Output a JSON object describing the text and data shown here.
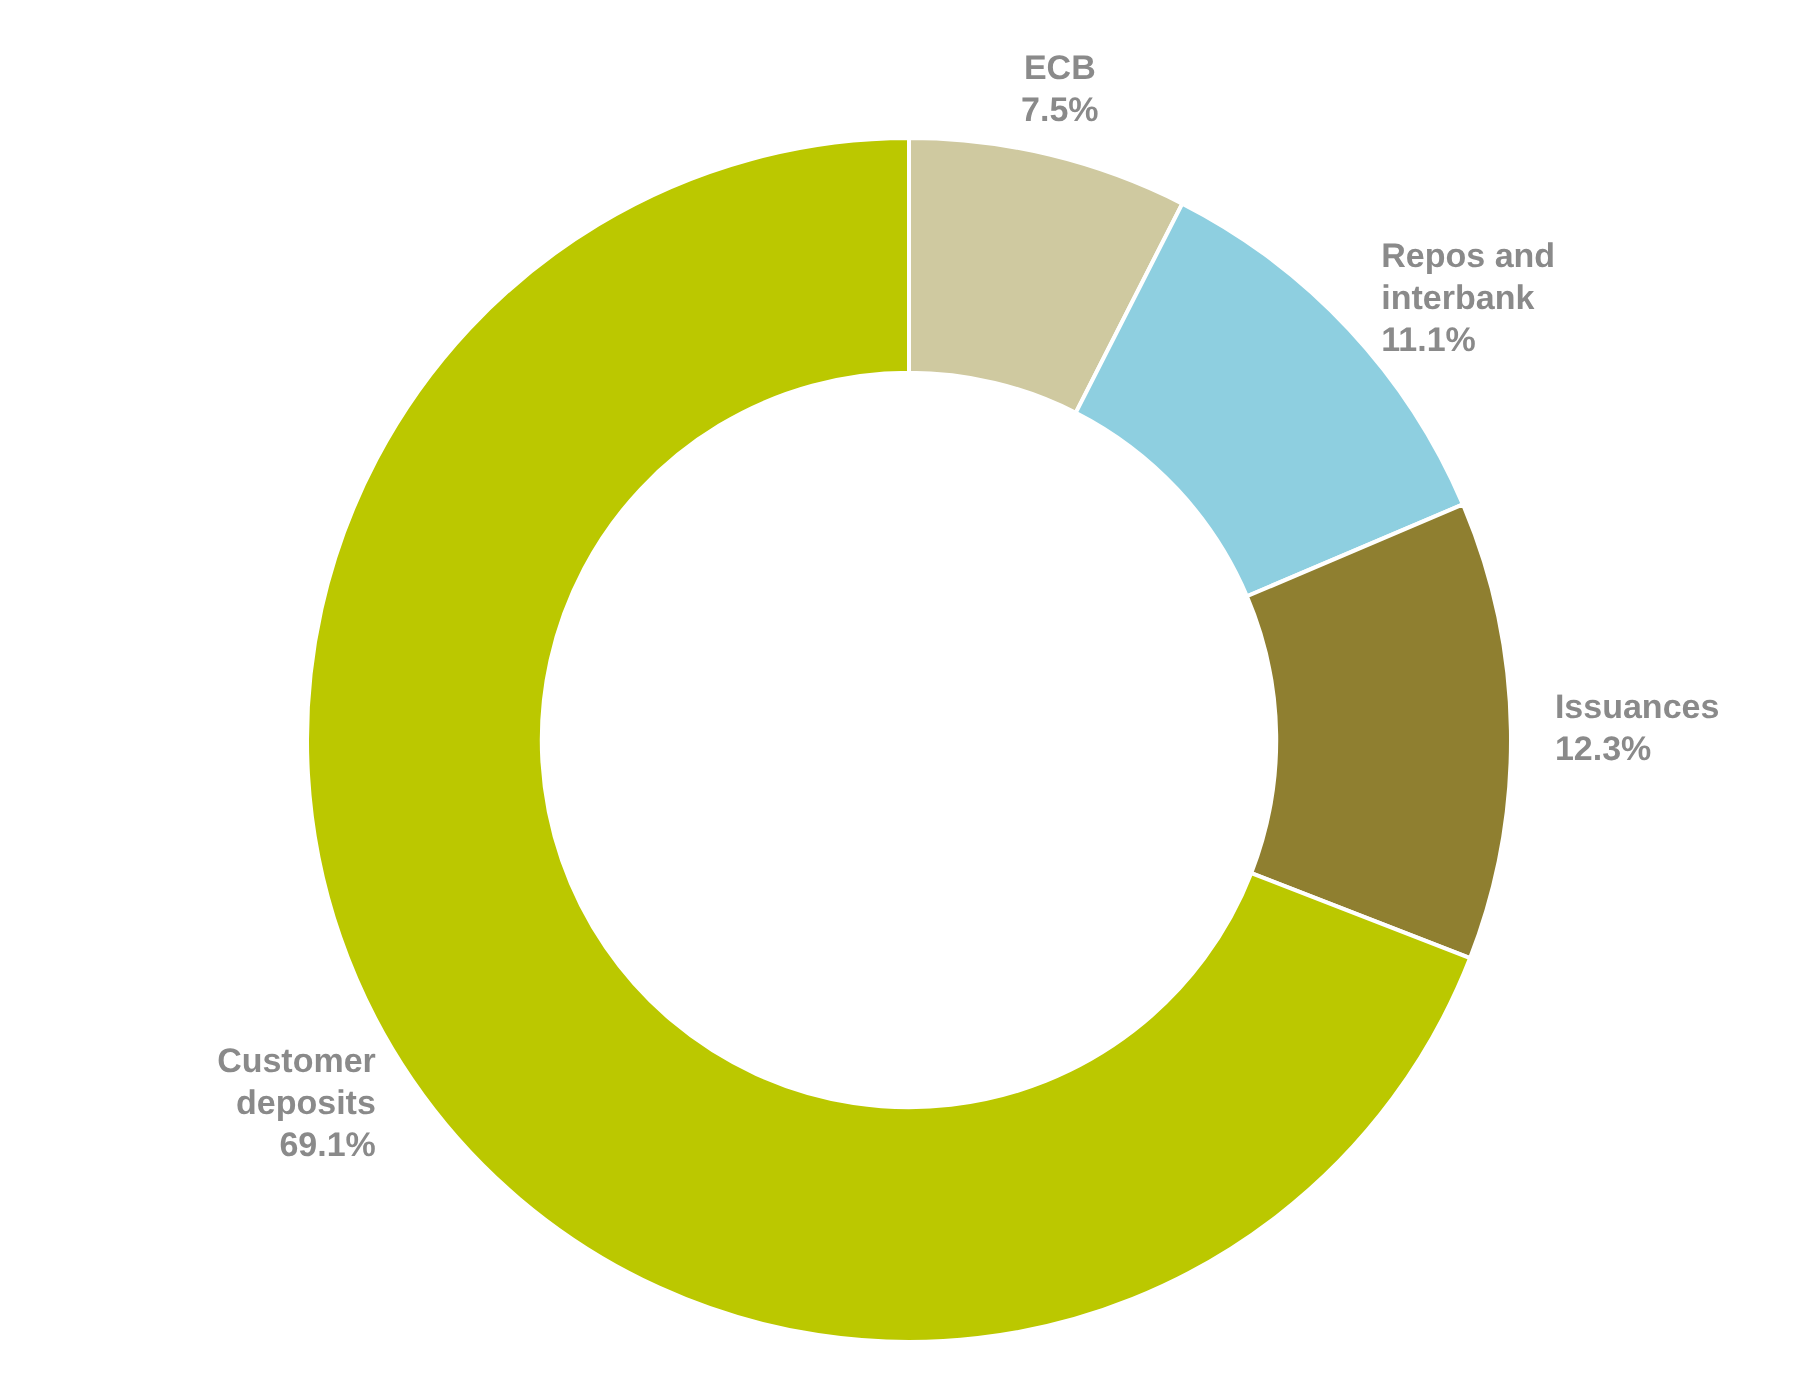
{
  "chart_data": {
    "type": "donut",
    "categories": [
      "ECB",
      "Repos and interbank",
      "Issuances",
      "Customer deposits"
    ],
    "values": [
      7.5,
      11.1,
      12.3,
      69.1
    ],
    "colors": [
      "#cfc9a0",
      "#8ecfe0",
      "#8f7f30",
      "#bbc800"
    ],
    "value_labels": [
      "7.5%",
      "11.1%",
      "12.3%",
      "69.1%"
    ],
    "legend": false
  }
}
